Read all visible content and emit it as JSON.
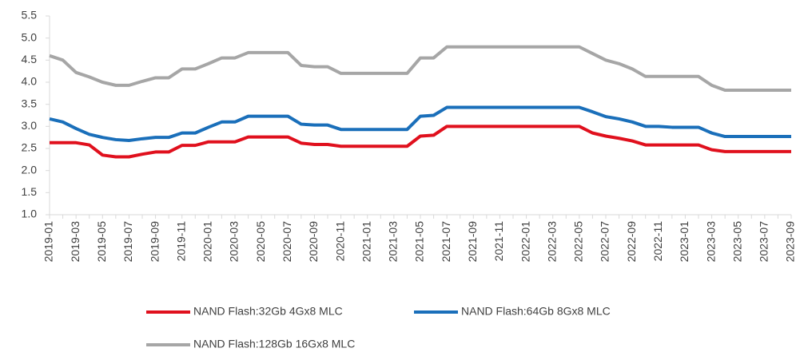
{
  "chart_data": {
    "type": "line",
    "categories": [
      "2019-01",
      null,
      "2019-03",
      null,
      "2019-05",
      null,
      "2019-07",
      null,
      "2019-09",
      null,
      "2019-11",
      null,
      "2020-01",
      null,
      "2020-03",
      null,
      "2020-05",
      null,
      "2020-07",
      null,
      "2020-09",
      null,
      "2020-11",
      null,
      "2021-01",
      null,
      "2021-03",
      null,
      "2021-05",
      null,
      "2021-07",
      null,
      "2021-09",
      null,
      "2021-11",
      null,
      "2022-01",
      null,
      "2022-03",
      null,
      "2022-05",
      null,
      "2022-07",
      null,
      "2022-09",
      null,
      "2022-11",
      null,
      "2023-01",
      null,
      "2023-03",
      null,
      "2023-05",
      null,
      "2023-07",
      null,
      "2023-09"
    ],
    "series": [
      {
        "name": "NAND Flash:32Gb 4Gx8 MLC",
        "color": "#e0101d",
        "values": [
          2.63,
          2.63,
          2.63,
          2.58,
          2.35,
          2.31,
          2.31,
          2.37,
          2.42,
          2.42,
          2.57,
          2.57,
          2.65,
          2.65,
          2.65,
          2.76,
          2.76,
          2.76,
          2.76,
          2.62,
          2.59,
          2.59,
          2.55,
          2.55,
          2.55,
          2.55,
          2.55,
          2.55,
          2.78,
          2.8,
          3.0,
          3.0,
          3.0,
          3.0,
          3.0,
          3.0,
          3.0,
          3.0,
          3.0,
          3.0,
          3.0,
          2.85,
          2.78,
          2.73,
          2.67,
          2.58,
          2.58,
          2.58,
          2.58,
          2.58,
          2.47,
          2.43,
          2.43,
          2.43,
          2.43,
          2.43,
          2.43
        ]
      },
      {
        "name": "NAND Flash:64Gb 8Gx8 MLC",
        "color": "#1a6fba",
        "values": [
          3.17,
          3.1,
          2.95,
          2.82,
          2.75,
          2.7,
          2.68,
          2.72,
          2.75,
          2.75,
          2.85,
          2.85,
          2.98,
          3.1,
          3.1,
          3.23,
          3.23,
          3.23,
          3.23,
          3.05,
          3.03,
          3.03,
          2.93,
          2.93,
          2.93,
          2.93,
          2.93,
          2.93,
          3.23,
          3.25,
          3.43,
          3.43,
          3.43,
          3.43,
          3.43,
          3.43,
          3.43,
          3.43,
          3.43,
          3.43,
          3.43,
          3.33,
          3.22,
          3.17,
          3.1,
          3.0,
          3.0,
          2.98,
          2.98,
          2.98,
          2.85,
          2.77,
          2.77,
          2.77,
          2.77,
          2.77,
          2.77
        ]
      },
      {
        "name": "NAND Flash:128Gb 16Gx8 MLC",
        "color": "#a6a6a6",
        "values": [
          4.6,
          4.5,
          4.22,
          4.12,
          4.0,
          3.93,
          3.93,
          4.02,
          4.1,
          4.1,
          4.3,
          4.3,
          4.42,
          4.55,
          4.55,
          4.67,
          4.67,
          4.67,
          4.67,
          4.38,
          4.35,
          4.35,
          4.2,
          4.2,
          4.2,
          4.2,
          4.2,
          4.2,
          4.55,
          4.55,
          4.8,
          4.8,
          4.8,
          4.8,
          4.8,
          4.8,
          4.8,
          4.8,
          4.8,
          4.8,
          4.8,
          4.65,
          4.5,
          4.42,
          4.3,
          4.13,
          4.13,
          4.13,
          4.13,
          4.13,
          3.93,
          3.82,
          3.82,
          3.82,
          3.82,
          3.82,
          3.82
        ]
      }
    ],
    "ylim": [
      1,
      5.5
    ],
    "yticks": [
      {
        "value": 1,
        "label": "1.0"
      },
      1.5,
      {
        "value": 2,
        "label": "2.0"
      },
      2.5,
      {
        "value": 3,
        "label": "3.0"
      },
      3.5,
      {
        "value": 4,
        "label": "4.0"
      },
      4.5,
      {
        "value": 5,
        "label": "5.0"
      },
      5.5
    ],
    "grid": false,
    "legend": "bottom"
  }
}
